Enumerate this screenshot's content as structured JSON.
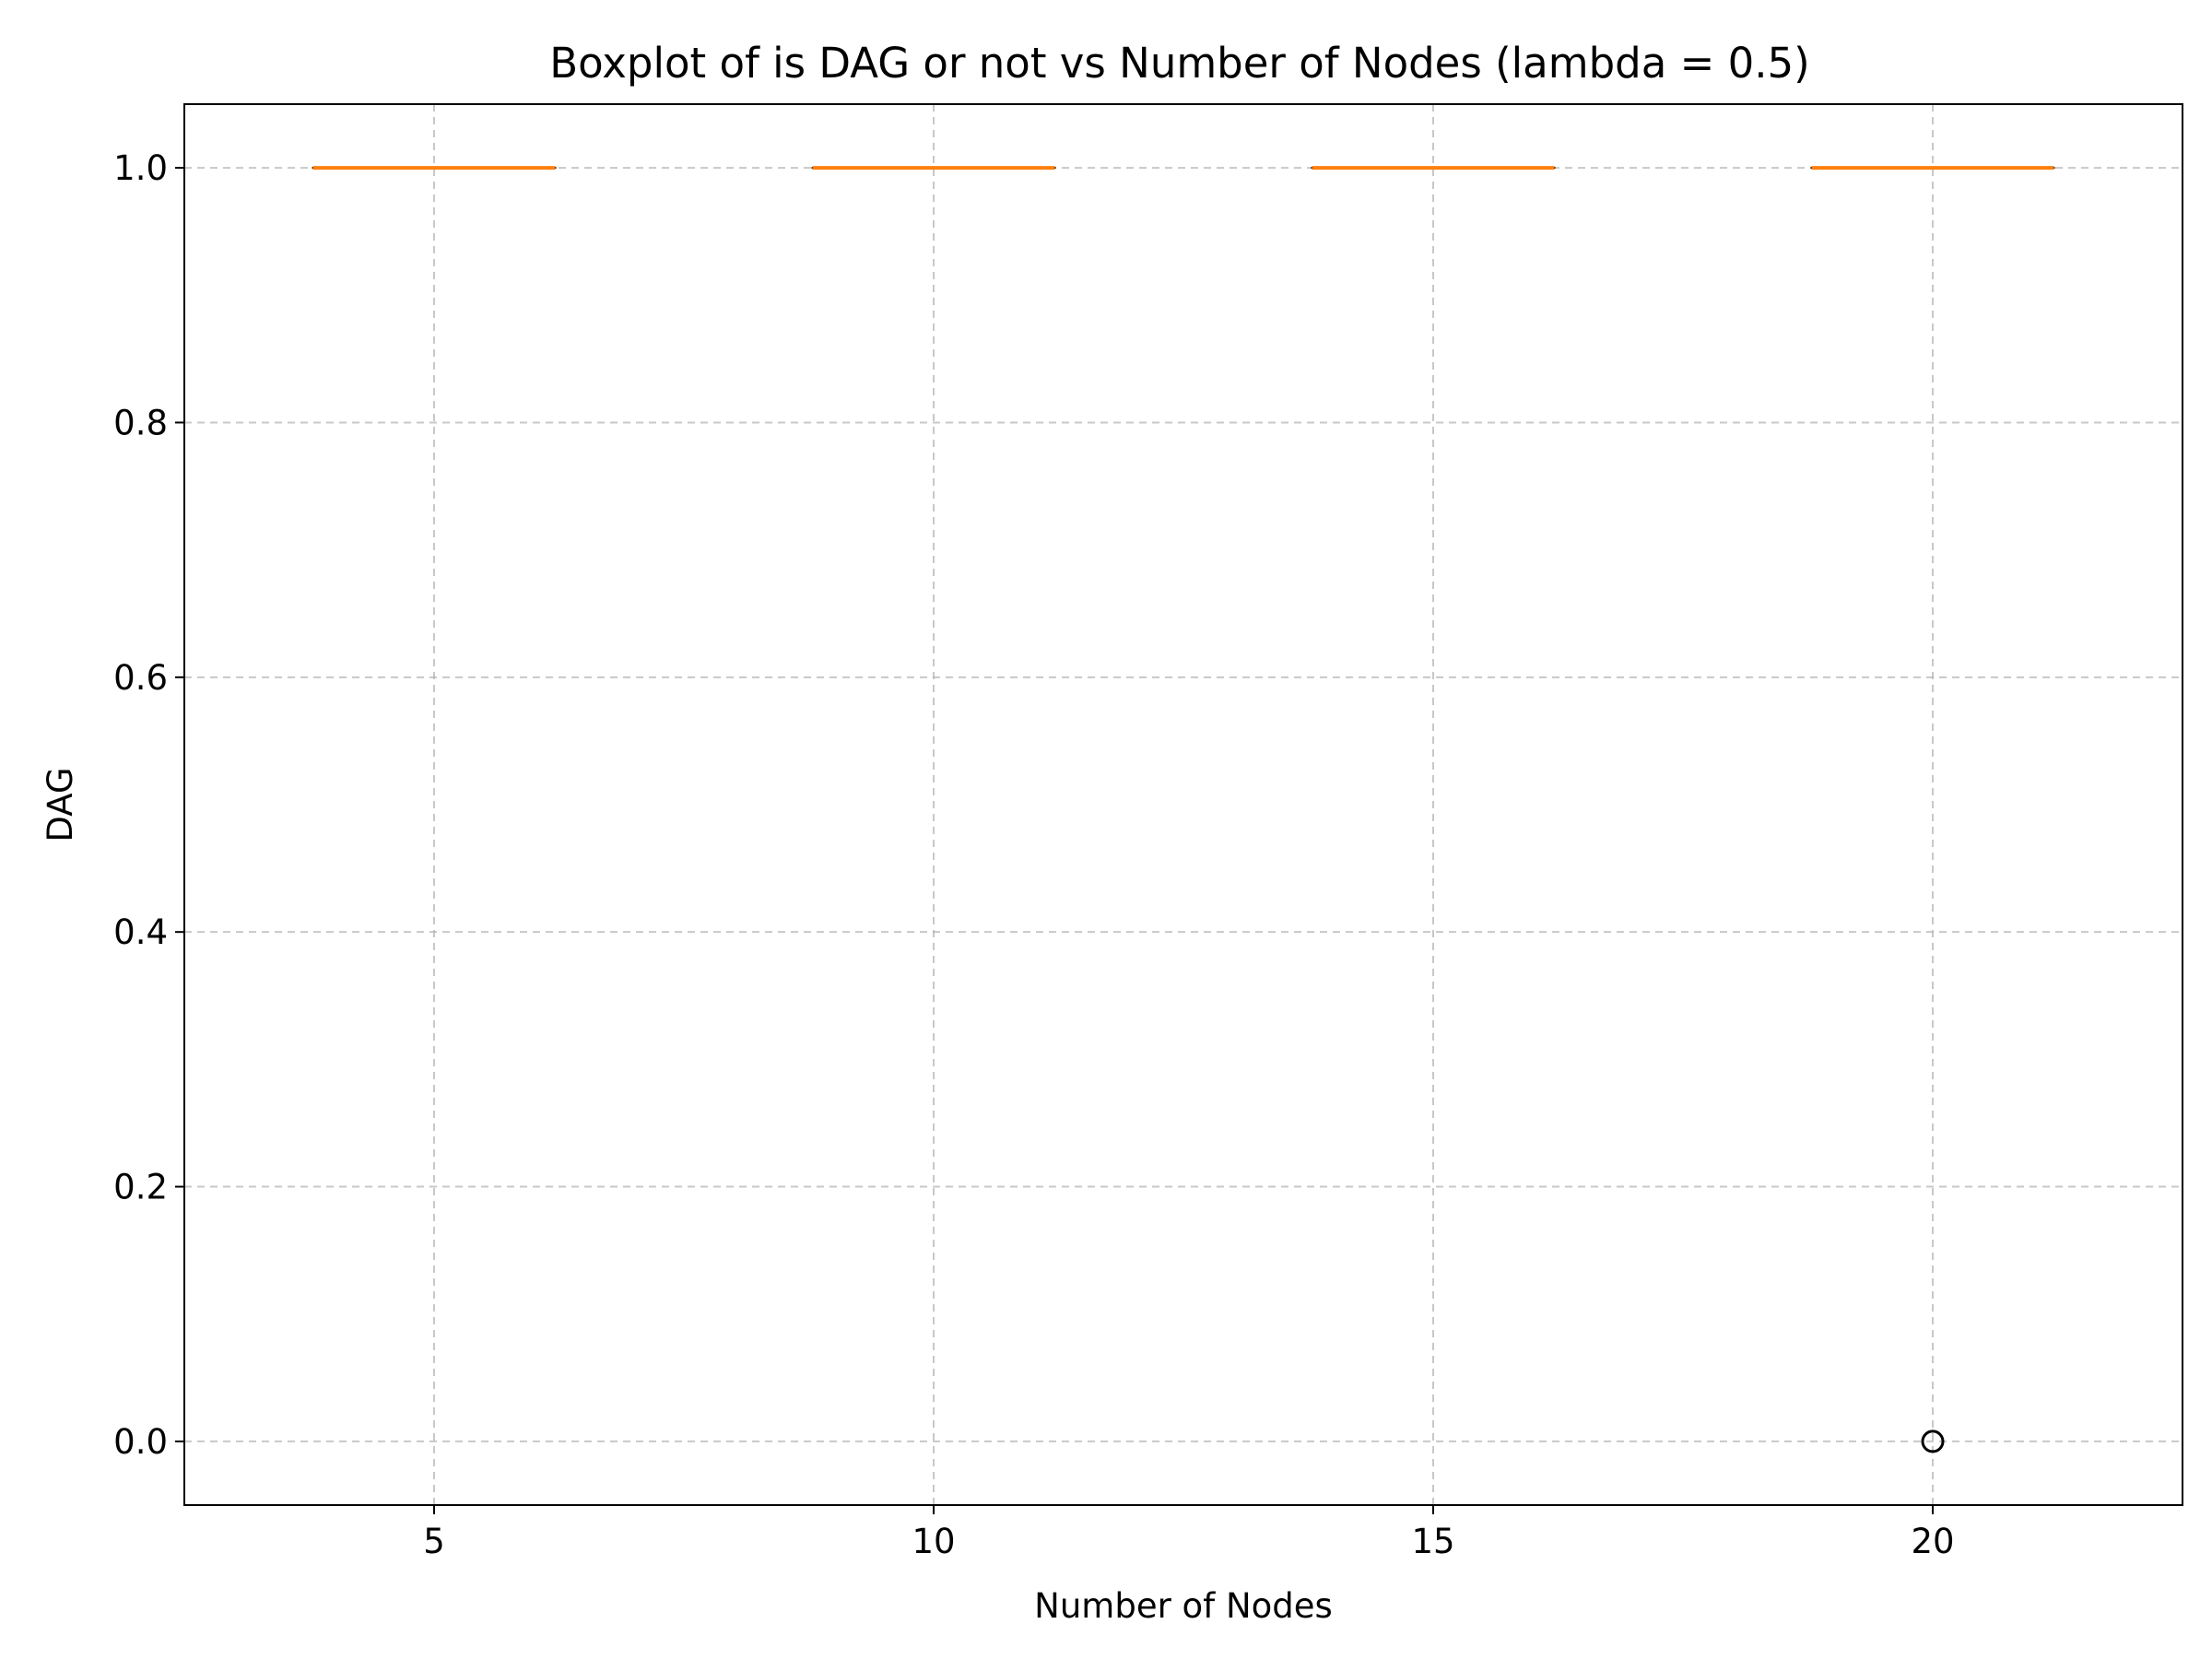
{
  "chart_data": {
    "type": "boxplot",
    "title": "Boxplot of is DAG or not vs Number of Nodes (lambda = 0.5)",
    "xlabel": "Number of Nodes",
    "ylabel": "DAG",
    "x_ticks": [
      "5",
      "10",
      "15",
      "20"
    ],
    "y_ticks": [
      "0.0",
      "0.2",
      "0.4",
      "0.6",
      "0.8",
      "1.0"
    ],
    "xlim": [
      2.5,
      22.5
    ],
    "ylim": [
      -0.05,
      1.05
    ],
    "grid": true,
    "boxes": [
      {
        "x": 5,
        "min": 1.0,
        "q1": 1.0,
        "median": 1.0,
        "q3": 1.0,
        "max": 1.0,
        "outliers": []
      },
      {
        "x": 10,
        "min": 1.0,
        "q1": 1.0,
        "median": 1.0,
        "q3": 1.0,
        "max": 1.0,
        "outliers": []
      },
      {
        "x": 15,
        "min": 1.0,
        "q1": 1.0,
        "median": 1.0,
        "q3": 1.0,
        "max": 1.0,
        "outliers": []
      },
      {
        "x": 20,
        "min": 1.0,
        "q1": 1.0,
        "median": 1.0,
        "q3": 1.0,
        "max": 1.0,
        "outliers": [
          0.0
        ]
      }
    ],
    "colors": {
      "median": "#ff7f0e",
      "box": "#000000",
      "grid": "#b0b0b0",
      "outlier": "#000000"
    }
  }
}
